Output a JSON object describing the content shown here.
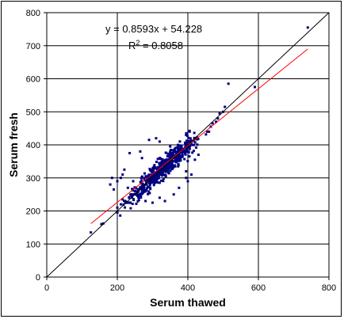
{
  "chart_data": {
    "type": "scatter",
    "xlabel": "Serum thawed",
    "ylabel": "Serum fresh",
    "xlim": [
      0,
      800
    ],
    "ylim": [
      0,
      800
    ],
    "x_ticks": [
      "0",
      "200",
      "400",
      "600",
      "800"
    ],
    "y_ticks": [
      "0",
      "100",
      "200",
      "300",
      "400",
      "500",
      "600",
      "700",
      "800"
    ],
    "grid": true,
    "regression": {
      "slope": 0.8593,
      "intercept": 54.228,
      "x_range": [
        125,
        740
      ],
      "color": "#ff0000",
      "equation_text": "y = 0.8593x + 54.228",
      "r2_prefix": "R",
      "r2_sup": "2",
      "r2_suffix": " = 0.8058"
    },
    "identity_line": {
      "from": [
        0,
        0
      ],
      "to": [
        800,
        800
      ],
      "color": "#000000"
    },
    "marker_color": "#000080",
    "outliers": [
      [
        125,
        135
      ],
      [
        155,
        160
      ],
      [
        160,
        162
      ],
      [
        200,
        210
      ],
      [
        210,
        220
      ],
      [
        215,
        235
      ],
      [
        185,
        300
      ],
      [
        180,
        280
      ],
      [
        190,
        265
      ],
      [
        200,
        290
      ],
      [
        210,
        300
      ],
      [
        215,
        310
      ],
      [
        220,
        325
      ],
      [
        235,
        375
      ],
      [
        265,
        380
      ],
      [
        270,
        360
      ],
      [
        290,
        415
      ],
      [
        310,
        420
      ],
      [
        320,
        410
      ],
      [
        350,
        395
      ],
      [
        395,
        430
      ],
      [
        405,
        440
      ],
      [
        420,
        355
      ],
      [
        430,
        370
      ],
      [
        460,
        440
      ],
      [
        465,
        455
      ],
      [
        470,
        465
      ],
      [
        480,
        470
      ],
      [
        485,
        480
      ],
      [
        490,
        495
      ],
      [
        500,
        500
      ],
      [
        505,
        515
      ],
      [
        515,
        585
      ],
      [
        590,
        575
      ],
      [
        740,
        755
      ],
      [
        300,
        225
      ],
      [
        320,
        240
      ],
      [
        335,
        230
      ],
      [
        360,
        250
      ],
      [
        375,
        270
      ],
      [
        395,
        300
      ],
      [
        395,
        320
      ],
      [
        400,
        290
      ],
      [
        410,
        310
      ],
      [
        250,
        260
      ],
      [
        260,
        240
      ],
      [
        280,
        230
      ],
      [
        240,
        245
      ],
      [
        230,
        270
      ],
      [
        245,
        290
      ]
    ],
    "cluster": {
      "count": 560,
      "x_min": 200,
      "x_max": 455,
      "slope": 1.0,
      "intercept": 0,
      "spread": 22
    }
  }
}
